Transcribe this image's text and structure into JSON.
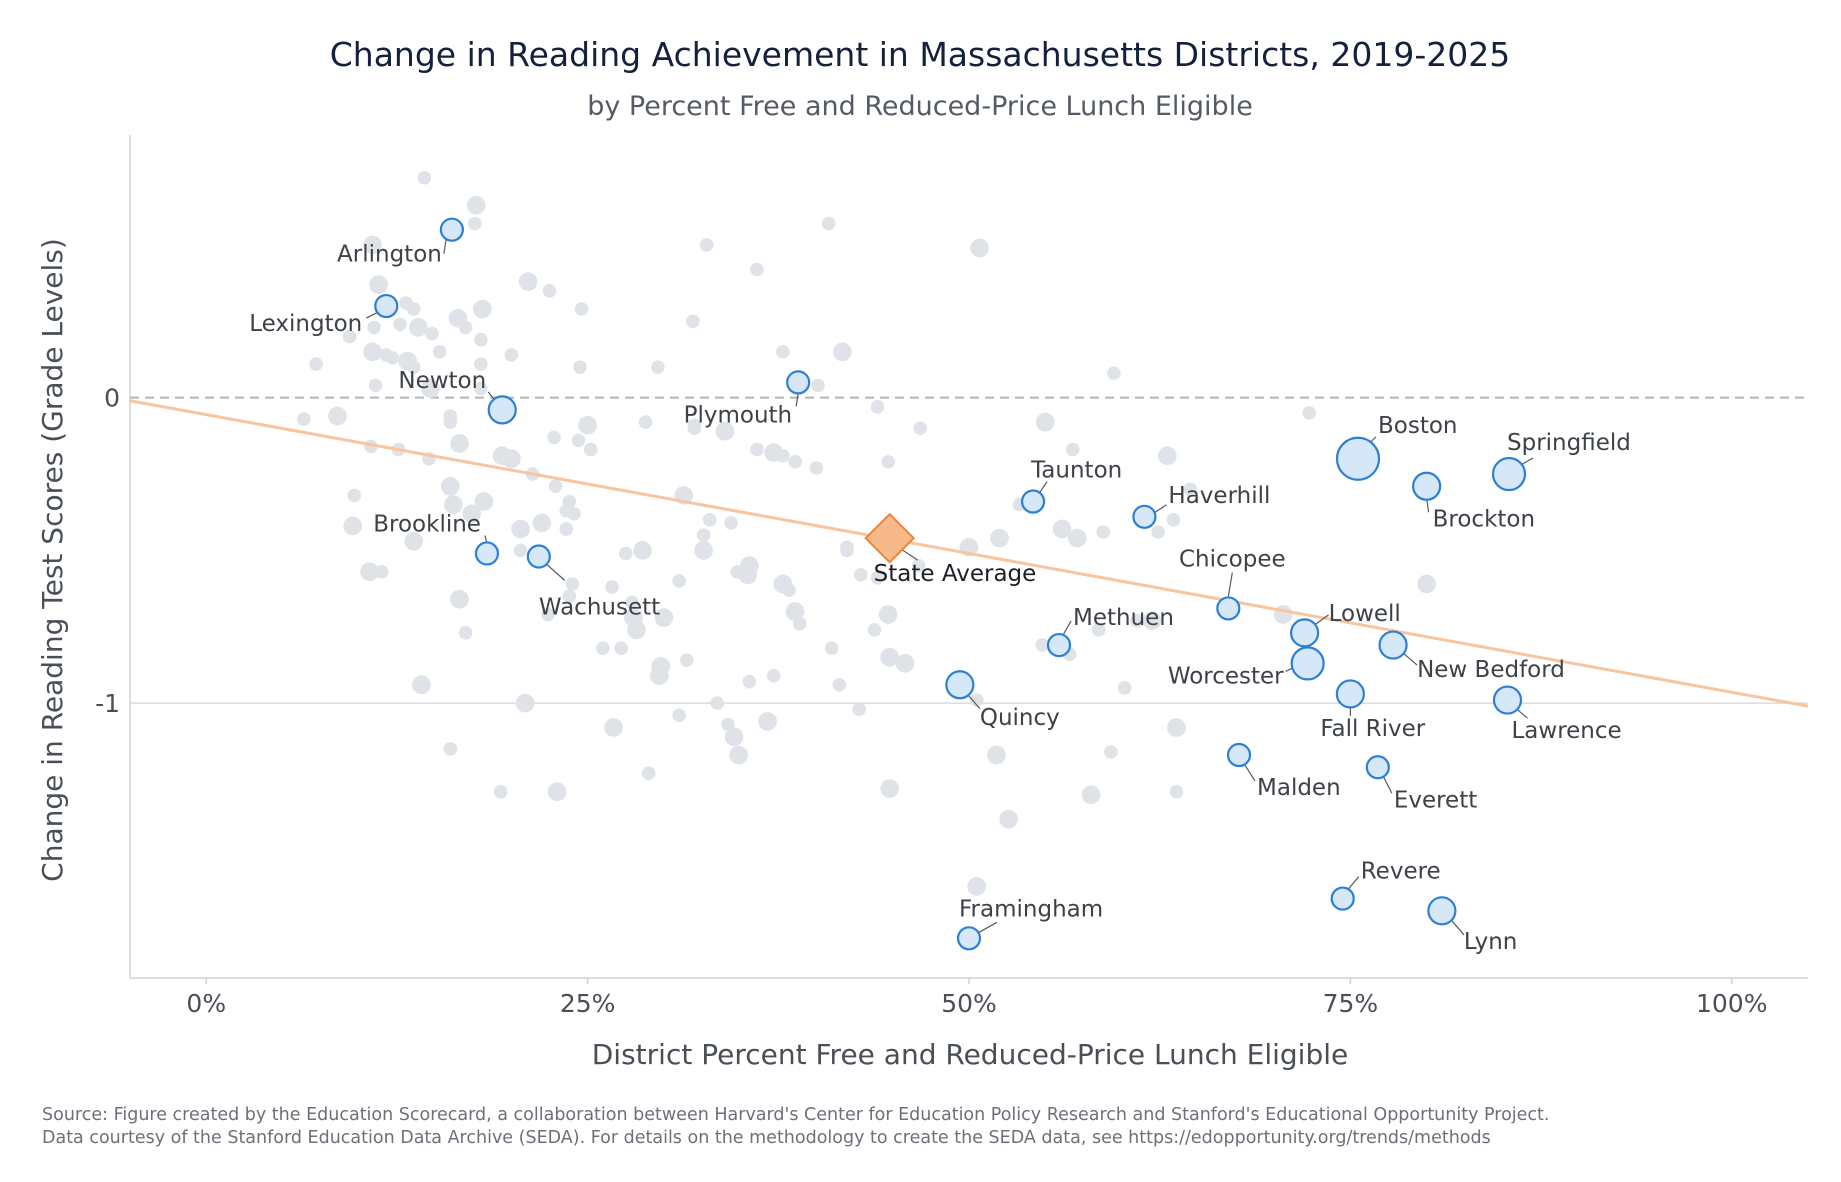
{
  "chart_data": {
    "type": "scatter",
    "title": "Change in Reading Achievement in Massachusetts Districts, 2019-2025",
    "subtitle": "by Percent Free and Reduced-Price Lunch Eligible",
    "xlabel": "District Percent Free and Reduced-Price Lunch Eligible",
    "ylabel": "Change in Reading Test Scores (Grade Levels)",
    "xlim": [
      -0.05,
      1.05
    ],
    "ylim": [
      -1.9,
      0.86
    ],
    "x_ticks": [
      {
        "value": 0,
        "label": "0%"
      },
      {
        "value": 0.25,
        "label": "25%"
      },
      {
        "value": 0.5,
        "label": "50%"
      },
      {
        "value": 0.75,
        "label": "75%"
      },
      {
        "value": 1.0,
        "label": "100%"
      }
    ],
    "y_ticks": [
      {
        "value": 0,
        "label": "0"
      },
      {
        "value": -1,
        "label": "-1"
      }
    ],
    "zero_line": "dashed",
    "trend_line": {
      "x": [
        -0.05,
        1.05
      ],
      "y": [
        -0.01,
        -1.01
      ],
      "color": "#f7c59f"
    },
    "state_average": {
      "label": "State Average",
      "x": 0.448,
      "y": -0.46,
      "color": "#f5a25d"
    },
    "highlighted": [
      {
        "name": "Arlington",
        "x": 0.161,
        "y": 0.55,
        "size": 2
      },
      {
        "name": "Lexington",
        "x": 0.118,
        "y": 0.3,
        "size": 2
      },
      {
        "name": "Newton",
        "x": 0.194,
        "y": -0.04,
        "size": 3
      },
      {
        "name": "Plymouth",
        "x": 0.388,
        "y": 0.05,
        "size": 2
      },
      {
        "name": "Brookline",
        "x": 0.184,
        "y": -0.51,
        "size": 2
      },
      {
        "name": "Wachusett",
        "x": 0.218,
        "y": -0.52,
        "size": 2
      },
      {
        "name": "Taunton",
        "x": 0.542,
        "y": -0.34,
        "size": 2
      },
      {
        "name": "Haverhill",
        "x": 0.615,
        "y": -0.39,
        "size": 2
      },
      {
        "name": "Boston",
        "x": 0.755,
        "y": -0.2,
        "size": 6
      },
      {
        "name": "Springfield",
        "x": 0.854,
        "y": -0.25,
        "size": 4
      },
      {
        "name": "Brockton",
        "x": 0.8,
        "y": -0.29,
        "size": 3
      },
      {
        "name": "Chicopee",
        "x": 0.67,
        "y": -0.69,
        "size": 2
      },
      {
        "name": "Lowell",
        "x": 0.72,
        "y": -0.77,
        "size": 3
      },
      {
        "name": "Methuen",
        "x": 0.559,
        "y": -0.81,
        "size": 2
      },
      {
        "name": "Worcester",
        "x": 0.722,
        "y": -0.87,
        "size": 4
      },
      {
        "name": "New Bedford",
        "x": 0.778,
        "y": -0.81,
        "size": 3
      },
      {
        "name": "Quincy",
        "x": 0.494,
        "y": -0.94,
        "size": 3
      },
      {
        "name": "Fall River",
        "x": 0.75,
        "y": -0.97,
        "size": 3
      },
      {
        "name": "Lawrence",
        "x": 0.853,
        "y": -0.99,
        "size": 3
      },
      {
        "name": "Malden",
        "x": 0.677,
        "y": -1.17,
        "size": 2
      },
      {
        "name": "Everett",
        "x": 0.768,
        "y": -1.21,
        "size": 2
      },
      {
        "name": "Revere",
        "x": 0.745,
        "y": -1.64,
        "size": 2
      },
      {
        "name": "Lynn",
        "x": 0.81,
        "y": -1.68,
        "size": 3
      },
      {
        "name": "Framingham",
        "x": 0.5,
        "y": -1.77,
        "size": 2
      }
    ],
    "other_districts": [
      [
        0.143,
        0.72,
        1
      ],
      [
        0.177,
        0.63,
        2
      ],
      [
        0.176,
        0.57,
        1
      ],
      [
        0.109,
        0.5,
        2
      ],
      [
        0.113,
        0.37,
        2
      ],
      [
        0.131,
        0.31,
        1
      ],
      [
        0.136,
        0.29,
        1
      ],
      [
        0.165,
        0.26,
        2
      ],
      [
        0.094,
        0.2,
        1
      ],
      [
        0.11,
        0.23,
        1
      ],
      [
        0.127,
        0.24,
        1
      ],
      [
        0.139,
        0.23,
        2
      ],
      [
        0.148,
        0.21,
        1
      ],
      [
        0.109,
        0.15,
        2
      ],
      [
        0.122,
        0.13,
        1
      ],
      [
        0.132,
        0.12,
        2
      ],
      [
        0.136,
        0.1,
        1
      ],
      [
        0.153,
        0.15,
        1
      ],
      [
        0.17,
        0.23,
        1
      ],
      [
        0.181,
        0.29,
        2
      ],
      [
        0.18,
        0.19,
        1
      ],
      [
        0.072,
        0.11,
        1
      ],
      [
        0.111,
        0.04,
        1
      ],
      [
        0.118,
        0.14,
        1
      ],
      [
        0.147,
        0.03,
        2
      ],
      [
        0.18,
        0.03,
        1
      ],
      [
        0.18,
        0.11,
        1
      ],
      [
        0.2,
        0.14,
        1
      ],
      [
        0.211,
        0.38,
        2
      ],
      [
        0.225,
        0.35,
        1
      ],
      [
        0.246,
        0.29,
        1
      ],
      [
        0.245,
        0.1,
        1
      ],
      [
        0.296,
        0.1,
        1
      ],
      [
        0.319,
        0.25,
        1
      ],
      [
        0.328,
        0.5,
        1
      ],
      [
        0.361,
        0.42,
        1
      ],
      [
        0.378,
        0.15,
        1
      ],
      [
        0.401,
        0.04,
        1
      ],
      [
        0.417,
        0.15,
        2
      ],
      [
        0.408,
        0.57,
        1
      ],
      [
        0.507,
        0.49,
        2
      ],
      [
        0.595,
        0.08,
        1
      ],
      [
        0.086,
        -0.06,
        2
      ],
      [
        0.064,
        -0.07,
        1
      ],
      [
        0.108,
        -0.16,
        1
      ],
      [
        0.126,
        -0.17,
        1
      ],
      [
        0.146,
        -0.2,
        1
      ],
      [
        0.16,
        -0.06,
        1
      ],
      [
        0.16,
        -0.08,
        1
      ],
      [
        0.166,
        -0.15,
        2
      ],
      [
        0.194,
        -0.19,
        2
      ],
      [
        0.2,
        -0.2,
        2
      ],
      [
        0.214,
        -0.25,
        1
      ],
      [
        0.229,
        -0.29,
        1
      ],
      [
        0.238,
        -0.34,
        1
      ],
      [
        0.244,
        -0.14,
        1
      ],
      [
        0.25,
        -0.09,
        2
      ],
      [
        0.228,
        -0.13,
        1
      ],
      [
        0.252,
        -0.17,
        1
      ],
      [
        0.288,
        -0.08,
        1
      ],
      [
        0.32,
        -0.1,
        1
      ],
      [
        0.32,
        -0.09,
        1
      ],
      [
        0.34,
        -0.11,
        2
      ],
      [
        0.361,
        -0.17,
        1
      ],
      [
        0.372,
        -0.18,
        2
      ],
      [
        0.378,
        -0.19,
        1
      ],
      [
        0.386,
        -0.21,
        1
      ],
      [
        0.4,
        -0.23,
        1
      ],
      [
        0.44,
        -0.03,
        1
      ],
      [
        0.447,
        -0.21,
        1
      ],
      [
        0.468,
        -0.1,
        1
      ],
      [
        0.55,
        -0.08,
        2
      ],
      [
        0.568,
        -0.17,
        1
      ],
      [
        0.63,
        -0.19,
        2
      ],
      [
        0.645,
        -0.3,
        1
      ],
      [
        0.723,
        -0.05,
        1
      ],
      [
        0.097,
        -0.32,
        1
      ],
      [
        0.096,
        -0.42,
        2
      ],
      [
        0.107,
        -0.57,
        2
      ],
      [
        0.115,
        -0.57,
        1
      ],
      [
        0.136,
        -0.47,
        2
      ],
      [
        0.16,
        -0.29,
        2
      ],
      [
        0.162,
        -0.35,
        2
      ],
      [
        0.174,
        -0.38,
        2
      ],
      [
        0.182,
        -0.34,
        2
      ],
      [
        0.206,
        -0.43,
        2
      ],
      [
        0.206,
        -0.5,
        1
      ],
      [
        0.22,
        -0.41,
        2
      ],
      [
        0.236,
        -0.37,
        1
      ],
      [
        0.241,
        -0.38,
        1
      ],
      [
        0.236,
        -0.43,
        1
      ],
      [
        0.24,
        -0.61,
        1
      ],
      [
        0.238,
        -0.65,
        1
      ],
      [
        0.224,
        -0.71,
        1
      ],
      [
        0.166,
        -0.66,
        2
      ],
      [
        0.17,
        -0.77,
        1
      ],
      [
        0.266,
        -0.62,
        1
      ],
      [
        0.275,
        -0.51,
        1
      ],
      [
        0.286,
        -0.5,
        2
      ],
      [
        0.279,
        -0.67,
        1
      ],
      [
        0.28,
        -0.72,
        2
      ],
      [
        0.3,
        -0.72,
        2
      ],
      [
        0.282,
        -0.76,
        2
      ],
      [
        0.26,
        -0.82,
        1
      ],
      [
        0.272,
        -0.82,
        1
      ],
      [
        0.31,
        -0.6,
        1
      ],
      [
        0.313,
        -0.32,
        2
      ],
      [
        0.326,
        -0.45,
        1
      ],
      [
        0.326,
        -0.5,
        2
      ],
      [
        0.33,
        -0.4,
        1
      ],
      [
        0.344,
        -0.41,
        1
      ],
      [
        0.348,
        -0.57,
        1
      ],
      [
        0.355,
        -0.58,
        2
      ],
      [
        0.356,
        -0.55,
        2
      ],
      [
        0.378,
        -0.61,
        2
      ],
      [
        0.382,
        -0.63,
        1
      ],
      [
        0.386,
        -0.7,
        2
      ],
      [
        0.389,
        -0.74,
        1
      ],
      [
        0.41,
        -0.82,
        1
      ],
      [
        0.42,
        -0.49,
        1
      ],
      [
        0.42,
        -0.5,
        1
      ],
      [
        0.429,
        -0.58,
        1
      ],
      [
        0.44,
        -0.59,
        1
      ],
      [
        0.447,
        -0.71,
        2
      ],
      [
        0.438,
        -0.76,
        1
      ],
      [
        0.448,
        -0.85,
        2
      ],
      [
        0.458,
        -0.87,
        2
      ],
      [
        0.467,
        -0.55,
        1
      ],
      [
        0.5,
        -0.49,
        2
      ],
      [
        0.52,
        -0.46,
        2
      ],
      [
        0.533,
        -0.35,
        1
      ],
      [
        0.561,
        -0.43,
        2
      ],
      [
        0.571,
        -0.46,
        2
      ],
      [
        0.588,
        -0.44,
        1
      ],
      [
        0.62,
        -0.73,
        2
      ],
      [
        0.61,
        -0.73,
        1
      ],
      [
        0.585,
        -0.76,
        1
      ],
      [
        0.548,
        -0.81,
        1
      ],
      [
        0.566,
        -0.84,
        1
      ],
      [
        0.706,
        -0.71,
        2
      ],
      [
        0.8,
        -0.61,
        2
      ],
      [
        0.624,
        -0.44,
        1
      ],
      [
        0.634,
        -0.4,
        1
      ],
      [
        0.141,
        -0.94,
        2
      ],
      [
        0.209,
        -1.0,
        2
      ],
      [
        0.23,
        -1.29,
        2
      ],
      [
        0.267,
        -1.08,
        2
      ],
      [
        0.29,
        -1.23,
        1
      ],
      [
        0.298,
        -0.88,
        2
      ],
      [
        0.297,
        -0.91,
        2
      ],
      [
        0.31,
        -1.04,
        1
      ],
      [
        0.315,
        -0.86,
        1
      ],
      [
        0.335,
        -1.0,
        1
      ],
      [
        0.342,
        -1.07,
        1
      ],
      [
        0.346,
        -1.11,
        2
      ],
      [
        0.349,
        -1.17,
        2
      ],
      [
        0.356,
        -0.93,
        1
      ],
      [
        0.372,
        -0.91,
        1
      ],
      [
        0.368,
        -1.06,
        2
      ],
      [
        0.415,
        -0.94,
        1
      ],
      [
        0.428,
        -1.02,
        1
      ],
      [
        0.448,
        -1.28,
        2
      ],
      [
        0.505,
        -0.99,
        1
      ],
      [
        0.518,
        -1.17,
        2
      ],
      [
        0.526,
        -1.38,
        2
      ],
      [
        0.505,
        -1.6,
        2
      ],
      [
        0.58,
        -1.3,
        2
      ],
      [
        0.593,
        -1.16,
        1
      ],
      [
        0.602,
        -0.95,
        1
      ],
      [
        0.636,
        -1.08,
        2
      ],
      [
        0.636,
        -1.29,
        1
      ],
      [
        0.16,
        -1.15,
        1
      ],
      [
        0.193,
        -1.29,
        1
      ]
    ]
  },
  "footer": {
    "source_line1": "Source: Figure created by the Education Scorecard, a collaboration between Harvard's Center for Education Policy Research and Stanford's Educational Opportunity Project.",
    "source_line2": "Data courtesy of the Stanford Education Data Archive (SEDA). For details on the methodology to create the SEDA data, see https://edopportunity.org/trends/methods"
  },
  "colors": {
    "background_point": "#dfe3e8",
    "highlight_fill": "#d6e8f8",
    "highlight_stroke": "#2b7fd4",
    "trend": "#f7c59f",
    "zero_line": "#b5b5b5"
  }
}
